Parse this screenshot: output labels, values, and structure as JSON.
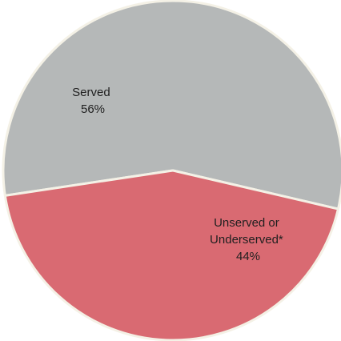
{
  "chart_data": {
    "type": "pie",
    "slices": [
      {
        "label": "Served",
        "value_label": "56%",
        "value": 56,
        "color": "#b5b8b8"
      },
      {
        "label_lines": [
          "Unserved or",
          "Underserved*"
        ],
        "value_label": "44%",
        "value": 44,
        "color": "#d96a72"
      }
    ],
    "separator_color": "#f4f1e6"
  }
}
